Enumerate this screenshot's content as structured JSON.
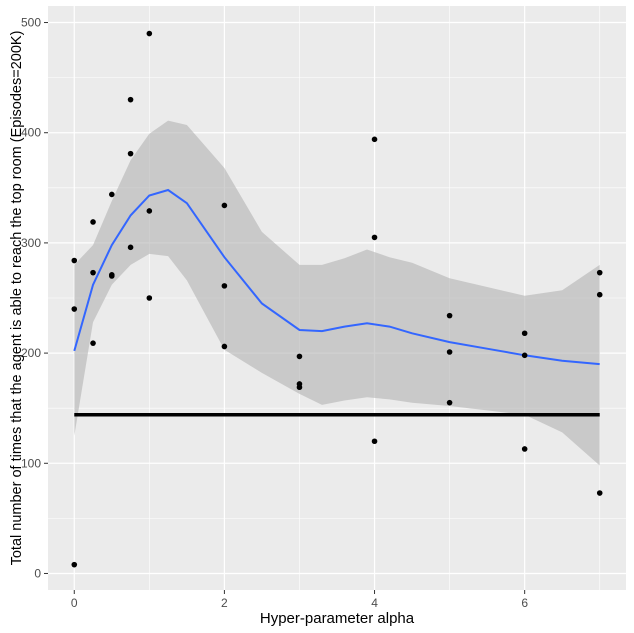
{
  "chart_data": {
    "type": "scatter",
    "xlabel": "Hyper-parameter alpha",
    "ylabel": "Total number of times that the agent is able to reach the top room (Episodes=200K)",
    "xlim": [
      -0.35,
      7.35
    ],
    "ylim": [
      -15,
      515
    ],
    "x_ticks": [
      0,
      2,
      4,
      6
    ],
    "y_ticks": [
      0,
      100,
      200,
      300,
      400,
      500
    ],
    "grid": true,
    "colors": {
      "panel_background": "#EBEBEB",
      "grid_major": "#FFFFFF",
      "points": "#000000",
      "smooth_line": "#3366FF",
      "confidence_band": "#B3B3B3",
      "baseline": "#000000"
    },
    "points": [
      {
        "x": 0,
        "y": 8
      },
      {
        "x": 0,
        "y": 240
      },
      {
        "x": 0,
        "y": 284
      },
      {
        "x": 0.25,
        "y": 209
      },
      {
        "x": 0.25,
        "y": 273
      },
      {
        "x": 0.25,
        "y": 319
      },
      {
        "x": 0.5,
        "y": 270
      },
      {
        "x": 0.5,
        "y": 271
      },
      {
        "x": 0.5,
        "y": 344
      },
      {
        "x": 0.75,
        "y": 296
      },
      {
        "x": 0.75,
        "y": 381
      },
      {
        "x": 0.75,
        "y": 430
      },
      {
        "x": 1,
        "y": 250
      },
      {
        "x": 1,
        "y": 329
      },
      {
        "x": 1,
        "y": 490
      },
      {
        "x": 2,
        "y": 206
      },
      {
        "x": 2,
        "y": 261
      },
      {
        "x": 2,
        "y": 334
      },
      {
        "x": 3,
        "y": 169
      },
      {
        "x": 3,
        "y": 172
      },
      {
        "x": 3,
        "y": 197
      },
      {
        "x": 4,
        "y": 120
      },
      {
        "x": 4,
        "y": 305
      },
      {
        "x": 4,
        "y": 394
      },
      {
        "x": 5,
        "y": 155
      },
      {
        "x": 5,
        "y": 201
      },
      {
        "x": 5,
        "y": 234
      },
      {
        "x": 6,
        "y": 113
      },
      {
        "x": 6,
        "y": 198
      },
      {
        "x": 6,
        "y": 218
      },
      {
        "x": 7,
        "y": 73
      },
      {
        "x": 7,
        "y": 253
      },
      {
        "x": 7,
        "y": 273
      }
    ],
    "smooth": {
      "x": [
        0,
        0.25,
        0.5,
        0.75,
        1.0,
        1.25,
        1.5,
        2.0,
        2.5,
        3.0,
        3.3,
        3.6,
        3.9,
        4.2,
        4.5,
        5.0,
        5.5,
        6.0,
        6.5,
        7.0
      ],
      "y": [
        202,
        262,
        298,
        325,
        343,
        348,
        336,
        287,
        245,
        221,
        220,
        224,
        227,
        224,
        218,
        210,
        204,
        198,
        193,
        190
      ],
      "lo": [
        125,
        228,
        262,
        280,
        290,
        288,
        266,
        203,
        182,
        163,
        153,
        157,
        160,
        158,
        155,
        152,
        148,
        144,
        128,
        98
      ],
      "hi": [
        280,
        298,
        338,
        375,
        399,
        411,
        407,
        368,
        310,
        280,
        280,
        286,
        294,
        287,
        282,
        268,
        260,
        252,
        257,
        280
      ]
    },
    "hline": {
      "y": 144
    }
  }
}
